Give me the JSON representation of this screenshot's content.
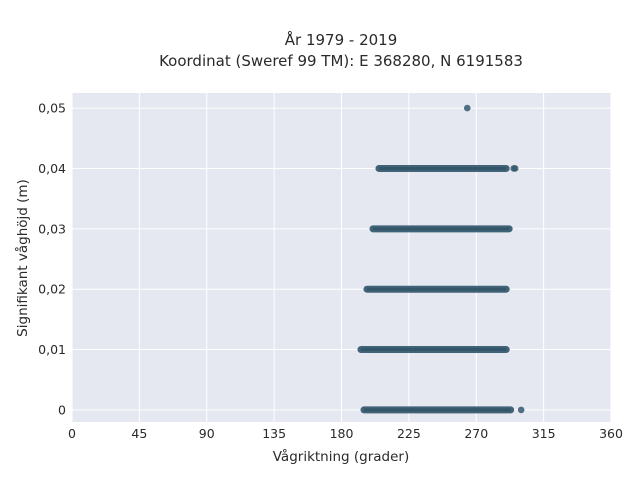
{
  "chart_data": {
    "type": "scatter",
    "title": "År 1979 - 2019",
    "subtitle": "Koordinat (Sweref 99 TM): E 368280, N 6191583",
    "xlabel": "Vågriktning (grader)",
    "ylabel": "Signifikant våghöjd (m)",
    "xlim": [
      0,
      360
    ],
    "ylim": [
      -0.002,
      0.0525
    ],
    "x_ticks": [
      0,
      45,
      90,
      135,
      180,
      225,
      270,
      315,
      360
    ],
    "x_tick_labels": [
      "0",
      "45",
      "90",
      "135",
      "180",
      "225",
      "270",
      "315",
      "360"
    ],
    "y_ticks": [
      0,
      0.01,
      0.02,
      0.03,
      0.04,
      0.05
    ],
    "y_tick_labels": [
      "0",
      "0,01",
      "0,02",
      "0,03",
      "0,04",
      "0,05"
    ],
    "grid": true,
    "marker_color": "#34586d",
    "plot_background": "#e5e8f0",
    "bands": [
      {
        "height": 0,
        "direction_range": [
          195,
          293
        ],
        "outliers": [
          300
        ]
      },
      {
        "height": 0.01,
        "direction_range": [
          193,
          290
        ],
        "outliers": []
      },
      {
        "height": 0.02,
        "direction_range": [
          197,
          290
        ],
        "outliers": []
      },
      {
        "height": 0.03,
        "direction_range": [
          201,
          292
        ],
        "outliers": []
      },
      {
        "height": 0.04,
        "direction_range": [
          205,
          290
        ],
        "outliers": [
          295,
          296
        ]
      },
      {
        "height": 0.05,
        "direction_range": [
          264,
          264
        ],
        "outliers": []
      }
    ]
  }
}
